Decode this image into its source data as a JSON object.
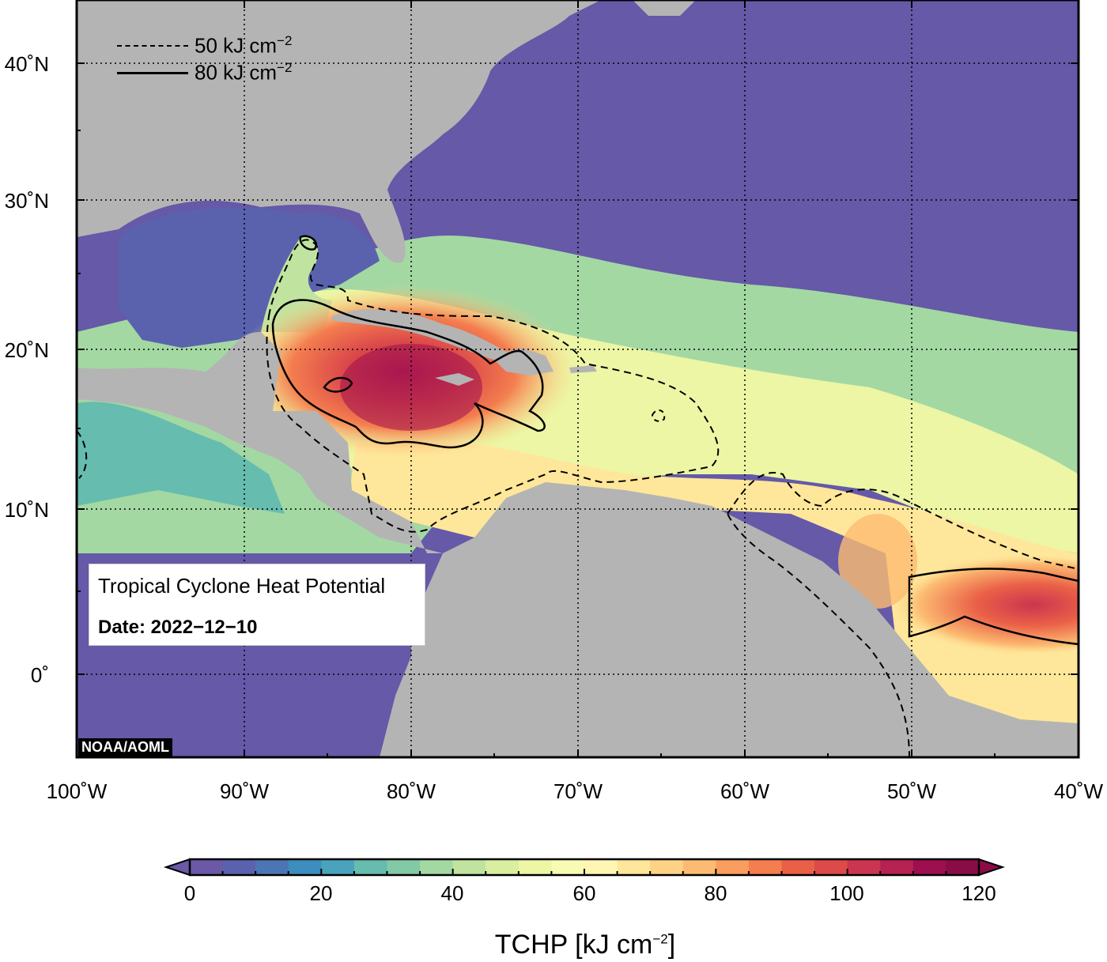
{
  "map": {
    "info_title": "Tropical Cyclone Heat Potential",
    "info_date": "Date: 2022−12−10",
    "credit": "NOAA/AOML",
    "legend": [
      {
        "label": "50 kJ cm",
        "exponent": "−2",
        "style": "dashed"
      },
      {
        "label": "80 kJ cm",
        "exponent": "−2",
        "style": "solid"
      }
    ],
    "lat_labels": [
      "40˚N",
      "30˚N",
      "20˚N",
      "10˚N",
      "0˚"
    ],
    "lon_labels": [
      "100˚W",
      "90˚W",
      "80˚W",
      "70˚W",
      "60˚W",
      "50˚W",
      "40˚W"
    ],
    "colors": {
      "land": "#b4b4b4",
      "cold_ocean": "#6559a8",
      "frame": "#000000"
    }
  },
  "colorbar": {
    "title": "TCHP [kJ cm",
    "title_exponent": "−2",
    "title_close": "]",
    "ticks": [
      "0",
      "20",
      "40",
      "60",
      "80",
      "100",
      "120"
    ],
    "min": 0,
    "max": 120,
    "step": 5,
    "colors": [
      "#6b58a6",
      "#5a62ad",
      "#4c75b5",
      "#3d8dbf",
      "#4aa3bd",
      "#66bcae",
      "#82c9a5",
      "#a3d8a3",
      "#c0e4a0",
      "#d9ef9f",
      "#ecf6a4",
      "#f8fbb3",
      "#fef6b2",
      "#fee79a",
      "#fdd285",
      "#fcbb72",
      "#f99e5e",
      "#f47e4f",
      "#ea6047",
      "#dc4a4a",
      "#cb3550",
      "#b62252",
      "#9e0f4f",
      "#8a0c46"
    ]
  }
}
